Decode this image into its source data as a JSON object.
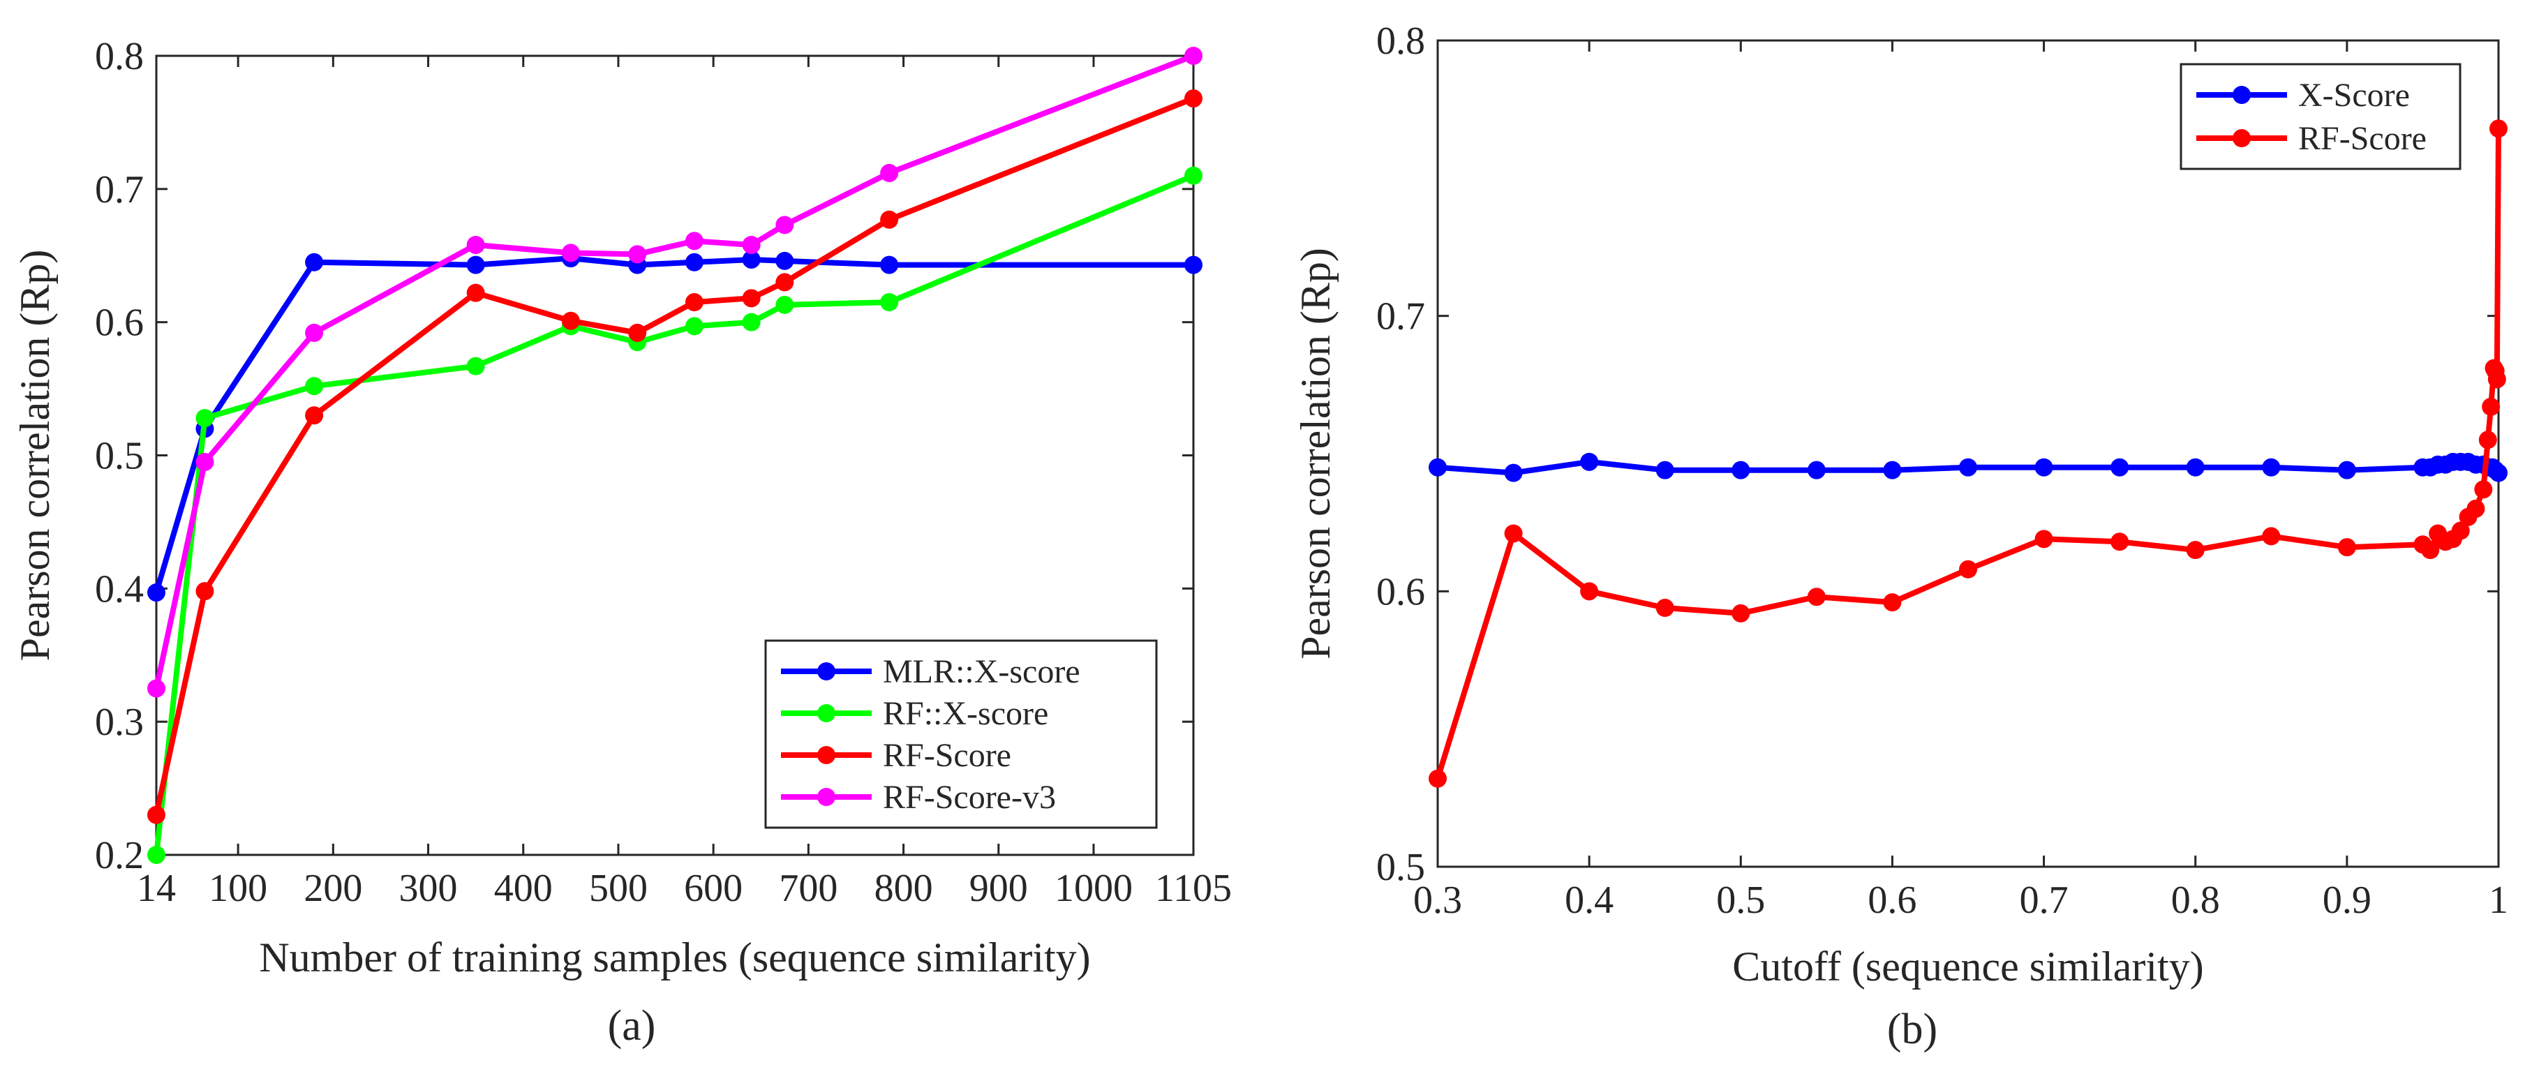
{
  "chart_data": [
    {
      "type": "line",
      "caption": "(a)",
      "xlabel": "Number of training samples (sequence similarity)",
      "ylabel": "Pearson correlation (Rp)",
      "xlim": [
        14,
        1105
      ],
      "ylim": [
        0.2,
        0.8
      ],
      "xticks": [
        14,
        100,
        200,
        300,
        400,
        500,
        600,
        700,
        800,
        900,
        1000,
        1105
      ],
      "xtick_labels": [
        "14",
        "100",
        "200",
        "300",
        "400",
        "500",
        "600",
        "700",
        "800",
        "900",
        "1000",
        "1105"
      ],
      "yticks": [
        0.2,
        0.3,
        0.4,
        0.5,
        0.6,
        0.7,
        0.8
      ],
      "ytick_labels": [
        "0.2",
        "0.3",
        "0.4",
        "0.5",
        "0.6",
        "0.7",
        "0.8"
      ],
      "legend_position": "bottom-right",
      "series": [
        {
          "name": "MLR::X-score",
          "color": "#0000ff",
          "x": [
            14,
            65,
            180,
            350,
            450,
            520,
            580,
            640,
            675,
            785,
            1105
          ],
          "y": [
            0.397,
            0.52,
            0.645,
            0.643,
            0.648,
            0.643,
            0.645,
            0.647,
            0.646,
            0.643,
            0.643
          ]
        },
        {
          "name": "RF::X-score",
          "color": "#00ff00",
          "x": [
            14,
            65,
            180,
            350,
            450,
            520,
            580,
            640,
            675,
            785,
            1105
          ],
          "y": [
            0.2,
            0.528,
            0.552,
            0.567,
            0.597,
            0.585,
            0.597,
            0.6,
            0.613,
            0.615,
            0.71
          ]
        },
        {
          "name": "RF-Score",
          "color": "#ff0000",
          "x": [
            14,
            65,
            180,
            350,
            450,
            520,
            580,
            640,
            675,
            785,
            1105
          ],
          "y": [
            0.23,
            0.398,
            0.53,
            0.622,
            0.601,
            0.592,
            0.615,
            0.618,
            0.63,
            0.677,
            0.768
          ]
        },
        {
          "name": "RF-Score-v3",
          "color": "#ff00ff",
          "x": [
            14,
            65,
            180,
            350,
            450,
            520,
            580,
            640,
            675,
            785,
            1105
          ],
          "y": [
            0.325,
            0.495,
            0.592,
            0.658,
            0.652,
            0.651,
            0.661,
            0.658,
            0.673,
            0.712,
            0.8
          ]
        }
      ]
    },
    {
      "type": "line",
      "caption": "(b)",
      "xlabel": "Cutoff (sequence similarity)",
      "ylabel": "Pearson correlation (Rp)",
      "xlim": [
        0.3,
        1
      ],
      "ylim": [
        0.5,
        0.8
      ],
      "xticks": [
        0.3,
        0.4,
        0.5,
        0.6,
        0.7,
        0.8,
        0.9,
        1
      ],
      "xtick_labels": [
        "0.3",
        "0.4",
        "0.5",
        "0.6",
        "0.7",
        "0.8",
        "0.9",
        "1"
      ],
      "yticks": [
        0.5,
        0.6,
        0.7,
        0.8
      ],
      "ytick_labels": [
        "0.5",
        "0.6",
        "0.7",
        "0.8"
      ],
      "legend_position": "top-right",
      "series": [
        {
          "name": "X-Score",
          "color": "#0000ff",
          "x": [
            0.3,
            0.35,
            0.4,
            0.45,
            0.5,
            0.55,
            0.6,
            0.65,
            0.7,
            0.75,
            0.8,
            0.85,
            0.9,
            0.95,
            0.955,
            0.96,
            0.965,
            0.97,
            0.975,
            0.98,
            0.985,
            0.99,
            0.993,
            0.996,
            0.998,
            1.0
          ],
          "y": [
            0.645,
            0.643,
            0.647,
            0.644,
            0.644,
            0.644,
            0.644,
            0.645,
            0.645,
            0.645,
            0.645,
            0.645,
            0.644,
            0.645,
            0.645,
            0.646,
            0.646,
            0.647,
            0.647,
            0.647,
            0.646,
            0.646,
            0.645,
            0.645,
            0.644,
            0.643
          ]
        },
        {
          "name": "RF-Score",
          "color": "#ff0000",
          "x": [
            0.3,
            0.35,
            0.4,
            0.45,
            0.5,
            0.55,
            0.6,
            0.65,
            0.7,
            0.75,
            0.8,
            0.85,
            0.9,
            0.95,
            0.955,
            0.96,
            0.965,
            0.97,
            0.975,
            0.98,
            0.985,
            0.99,
            0.993,
            0.995,
            0.997,
            0.998,
            0.999,
            1.0
          ],
          "y": [
            0.532,
            0.621,
            0.6,
            0.594,
            0.592,
            0.598,
            0.596,
            0.608,
            0.619,
            0.618,
            0.615,
            0.62,
            0.616,
            0.617,
            0.615,
            0.621,
            0.618,
            0.619,
            0.622,
            0.627,
            0.63,
            0.637,
            0.655,
            0.667,
            0.681,
            0.68,
            0.677,
            0.768
          ]
        }
      ]
    }
  ]
}
